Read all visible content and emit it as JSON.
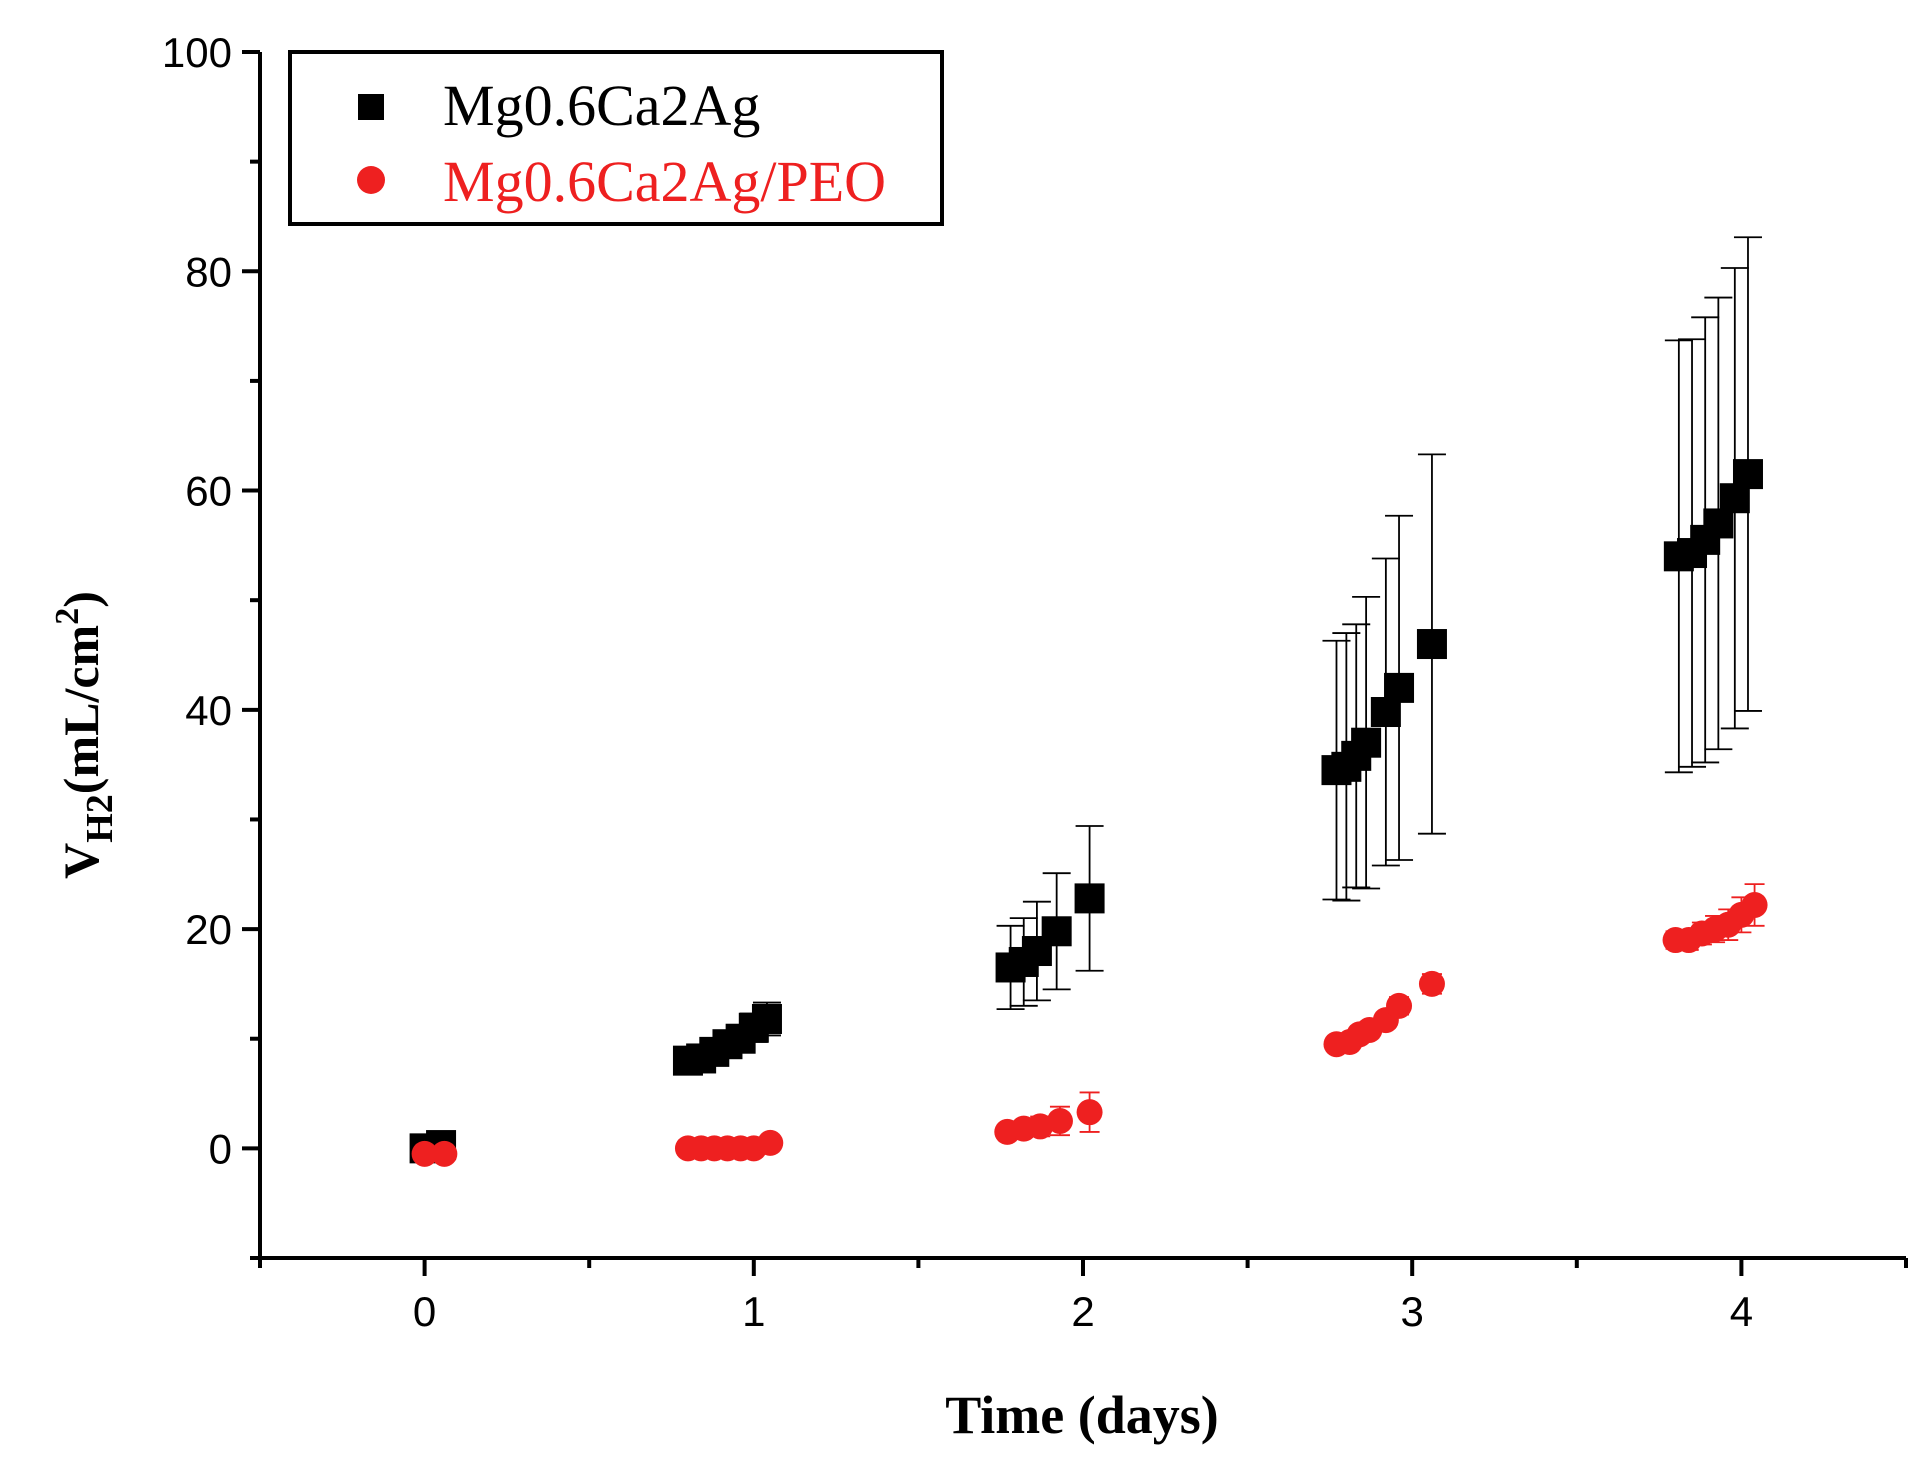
{
  "chart_data": {
    "type": "scatter",
    "xlabel": "Time (days)",
    "ylabel": {
      "base": "V",
      "subscript": "H2",
      "unit_open": "(mL/cm",
      "unit_sup": "2",
      "unit_close": ")"
    },
    "xlim": [
      -0.5,
      4.5
    ],
    "ylim": [
      -10,
      100
    ],
    "xticks": [
      0,
      1,
      2,
      3,
      4
    ],
    "xtick_labels": [
      "0",
      "1",
      "2",
      "3",
      "4"
    ],
    "yticks": [
      0,
      20,
      40,
      60,
      80,
      100
    ],
    "ytick_labels": [
      "0",
      "20",
      "40",
      "60",
      "80",
      "100"
    ],
    "legend_position": "top-left",
    "series": [
      {
        "name": "Mg0.6Ca2Ag",
        "marker": "square",
        "color": "#000000",
        "points": [
          {
            "x": 0.0,
            "y": 0.0,
            "err": 0.3
          },
          {
            "x": 0.05,
            "y": 0.3,
            "err": 0.3
          },
          {
            "x": 0.8,
            "y": 8.0,
            "err": 0.8
          },
          {
            "x": 0.84,
            "y": 8.2,
            "err": 0.9
          },
          {
            "x": 0.88,
            "y": 8.8,
            "err": 1.0
          },
          {
            "x": 0.92,
            "y": 9.5,
            "err": 1.1
          },
          {
            "x": 0.96,
            "y": 10.0,
            "err": 1.2
          },
          {
            "x": 1.0,
            "y": 11.0,
            "err": 1.3
          },
          {
            "x": 1.04,
            "y": 11.8,
            "err": 1.5
          },
          {
            "x": 1.78,
            "y": 16.5,
            "err": 3.8
          },
          {
            "x": 1.82,
            "y": 17.0,
            "err": 4.0
          },
          {
            "x": 1.86,
            "y": 18.0,
            "err": 4.5
          },
          {
            "x": 1.92,
            "y": 19.8,
            "err": 5.3
          },
          {
            "x": 2.02,
            "y": 22.8,
            "err": 6.6
          },
          {
            "x": 2.77,
            "y": 34.5,
            "err": 11.8
          },
          {
            "x": 2.8,
            "y": 34.8,
            "err": 12.2
          },
          {
            "x": 2.83,
            "y": 35.8,
            "err": 12.0
          },
          {
            "x": 2.86,
            "y": 37.0,
            "err": 13.3
          },
          {
            "x": 2.92,
            "y": 39.8,
            "err": 14.0
          },
          {
            "x": 2.96,
            "y": 42.0,
            "err": 15.7
          },
          {
            "x": 3.06,
            "y": 46.0,
            "err": 17.3
          },
          {
            "x": 3.81,
            "y": 54.0,
            "err": 19.7
          },
          {
            "x": 3.85,
            "y": 54.3,
            "err": 19.5
          },
          {
            "x": 3.89,
            "y": 55.5,
            "err": 20.3
          },
          {
            "x": 3.93,
            "y": 57.0,
            "err": 20.6
          },
          {
            "x": 3.98,
            "y": 59.3,
            "err": 21.0
          },
          {
            "x": 4.02,
            "y": 61.5,
            "err": 21.6
          }
        ]
      },
      {
        "name": "Mg0.6Ca2Ag/PEO",
        "marker": "circle",
        "color": "#ee2020",
        "points": [
          {
            "x": 0.0,
            "y": -0.5,
            "err": 0.2
          },
          {
            "x": 0.06,
            "y": -0.5,
            "err": 0.2
          },
          {
            "x": 0.8,
            "y": 0.0,
            "err": 0.2
          },
          {
            "x": 0.84,
            "y": 0.0,
            "err": 0.2
          },
          {
            "x": 0.88,
            "y": 0.0,
            "err": 0.2
          },
          {
            "x": 0.92,
            "y": 0.0,
            "err": 0.2
          },
          {
            "x": 0.96,
            "y": 0.0,
            "err": 0.2
          },
          {
            "x": 1.0,
            "y": 0.0,
            "err": 0.2
          },
          {
            "x": 1.05,
            "y": 0.5,
            "err": 0.4
          },
          {
            "x": 1.77,
            "y": 1.5,
            "err": 0.6
          },
          {
            "x": 1.82,
            "y": 1.8,
            "err": 0.7
          },
          {
            "x": 1.87,
            "y": 2.0,
            "err": 0.9
          },
          {
            "x": 1.93,
            "y": 2.5,
            "err": 1.3
          },
          {
            "x": 2.02,
            "y": 3.3,
            "err": 1.8
          },
          {
            "x": 2.77,
            "y": 9.5,
            "err": 0.6
          },
          {
            "x": 2.81,
            "y": 9.7,
            "err": 0.6
          },
          {
            "x": 2.84,
            "y": 10.4,
            "err": 0.6
          },
          {
            "x": 2.87,
            "y": 10.8,
            "err": 0.7
          },
          {
            "x": 2.92,
            "y": 11.7,
            "err": 0.7
          },
          {
            "x": 2.96,
            "y": 13.0,
            "err": 0.8
          },
          {
            "x": 3.06,
            "y": 15.0,
            "err": 0.9
          },
          {
            "x": 3.8,
            "y": 19.0,
            "err": 0.8
          },
          {
            "x": 3.84,
            "y": 19.0,
            "err": 0.9
          },
          {
            "x": 3.88,
            "y": 19.6,
            "err": 1.0
          },
          {
            "x": 3.92,
            "y": 20.0,
            "err": 1.2
          },
          {
            "x": 3.96,
            "y": 20.4,
            "err": 1.4
          },
          {
            "x": 4.0,
            "y": 21.3,
            "err": 1.6
          },
          {
            "x": 4.04,
            "y": 22.2,
            "err": 1.9
          }
        ]
      }
    ]
  }
}
